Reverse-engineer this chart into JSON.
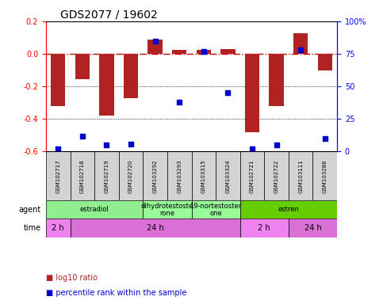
{
  "title": "GDS2077 / 19602",
  "samples": [
    "GSM102717",
    "GSM102718",
    "GSM102719",
    "GSM102720",
    "GSM103292",
    "GSM103293",
    "GSM103315",
    "GSM103324",
    "GSM102721",
    "GSM102722",
    "GSM103111",
    "GSM103286"
  ],
  "log10_ratio": [
    -0.32,
    -0.155,
    -0.38,
    -0.27,
    0.09,
    0.025,
    0.025,
    0.03,
    -0.48,
    -0.32,
    0.125,
    -0.1
  ],
  "percentile": [
    2,
    12,
    5,
    6,
    85,
    38,
    77,
    45,
    2,
    5,
    78,
    10
  ],
  "ylim_left": [
    -0.6,
    0.2
  ],
  "ylim_right": [
    0,
    100
  ],
  "yticks_left": [
    -0.6,
    -0.4,
    -0.2,
    0.0,
    0.2
  ],
  "yticks_right": [
    0,
    25,
    50,
    75,
    100
  ],
  "bar_color": "#b22222",
  "dot_color": "#0000cd",
  "ref_line_color": "#cc0000",
  "gridline_color": "#000000",
  "agent_groups": [
    {
      "label": "estradiol",
      "start": 0,
      "end": 4,
      "color": "#90ee90"
    },
    {
      "label": "dihydrotestoste\nrone",
      "start": 4,
      "end": 6,
      "color": "#98fb98"
    },
    {
      "label": "19-nortestoster\none",
      "start": 6,
      "end": 8,
      "color": "#98fb98"
    },
    {
      "label": "estren",
      "start": 8,
      "end": 12,
      "color": "#66cd00"
    }
  ],
  "time_groups": [
    {
      "label": "2 h",
      "start": 0,
      "end": 1,
      "color": "#ee82ee"
    },
    {
      "label": "24 h",
      "start": 1,
      "end": 8,
      "color": "#da70d6"
    },
    {
      "label": "2 h",
      "start": 8,
      "end": 10,
      "color": "#ee82ee"
    },
    {
      "label": "24 h",
      "start": 10,
      "end": 12,
      "color": "#da70d6"
    }
  ],
  "legend_items": [
    {
      "label": "log10 ratio",
      "color": "#b22222"
    },
    {
      "label": "percentile rank within the sample",
      "color": "#0000cd"
    }
  ]
}
